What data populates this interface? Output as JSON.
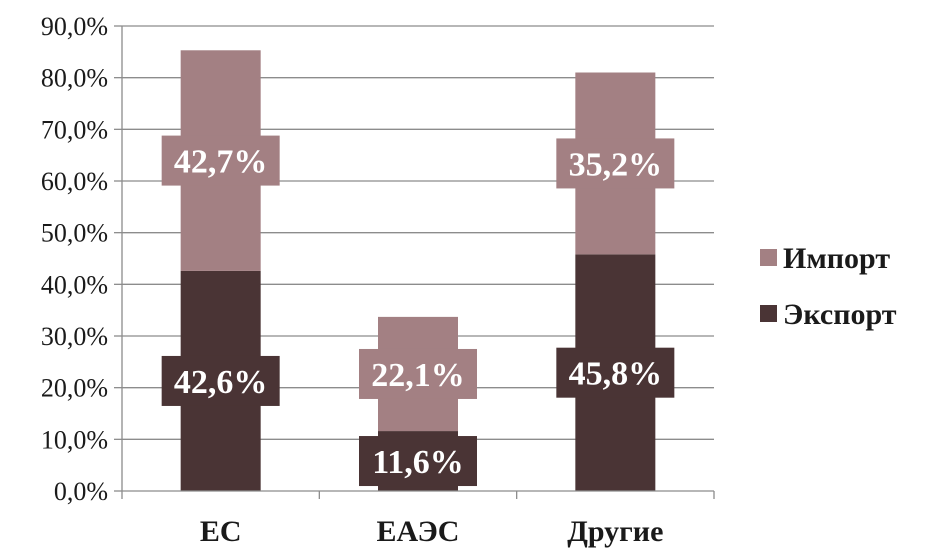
{
  "chart_data": {
    "type": "bar",
    "stacked": true,
    "categories": [
      "ЕС",
      "ЕАЭС",
      "Другие"
    ],
    "series": [
      {
        "name": "Экспорт",
        "values": [
          42.6,
          11.6,
          45.8
        ],
        "labels": [
          "42,6%",
          "11,6%",
          "45,8%"
        ],
        "color": "#4a3435"
      },
      {
        "name": "Импорт",
        "values": [
          42.7,
          22.1,
          35.2
        ],
        "labels": [
          "42,7%",
          "22,1%",
          "35,2%"
        ],
        "color": "#a38083"
      }
    ],
    "ylim": [
      0,
      90
    ],
    "ytick_labels": [
      "0,0%",
      "10,0%",
      "20,0%",
      "30,0%",
      "40,0%",
      "50,0%",
      "60,0%",
      "70,0%",
      "80,0%",
      "90,0%"
    ],
    "grid": true,
    "legend_position": "right",
    "legend": [
      {
        "name": "Импорт",
        "color": "#a38083"
      },
      {
        "name": "Экспорт",
        "color": "#4a3435"
      }
    ]
  }
}
